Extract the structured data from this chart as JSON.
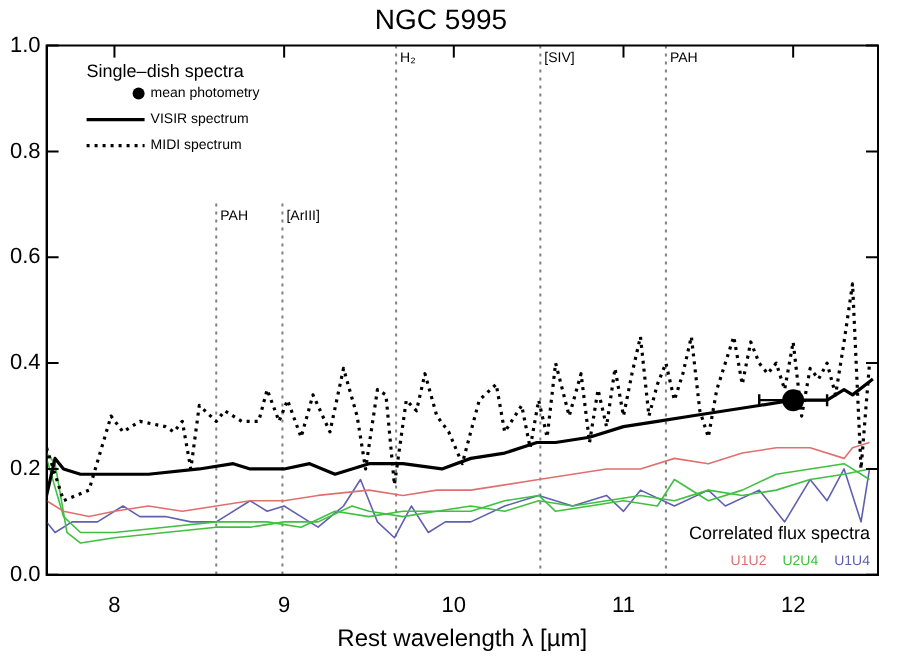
{
  "chart_data": {
    "type": "line",
    "title": "NGC 5995",
    "xlabel": "Rest wavelength λ [µm]",
    "legend": "top left",
    "legend_title": "Single–dish spectra",
    "grid": false,
    "xlim": [
      7.6,
      12.5
    ],
    "xticks": [
      8,
      9,
      10,
      11,
      12
    ],
    "ylim": [
      0,
      1.0
    ],
    "yticks": [
      {
        "value": 0,
        "label": "0.0"
      },
      0.2,
      0.4,
      0.6,
      0.8,
      {
        "value": 1,
        "label": "1.0"
      }
    ],
    "series": [
      {
        "name": "mean photometry",
        "type": "scatter",
        "color": "#000000",
        "marker": "circle",
        "x": [
          12.0
        ],
        "values": [
          0.33
        ],
        "xerrors": [
          [
            11.8,
            12.2
          ]
        ]
      },
      {
        "name": "VISIR spectrum",
        "color": "#000000",
        "line_style": "solid",
        "x": [
          7.6,
          7.65,
          7.7,
          7.8,
          8.0,
          8.2,
          8.5,
          8.7,
          8.8,
          9.0,
          9.15,
          9.3,
          9.5,
          9.7,
          9.93,
          10.1,
          10.3,
          10.49,
          10.6,
          10.8,
          11.0,
          11.2,
          11.4,
          11.6,
          11.8,
          12.0,
          12.2,
          12.3,
          12.35,
          12.47
        ],
        "values": [
          0.15,
          0.22,
          0.2,
          0.19,
          0.19,
          0.19,
          0.2,
          0.21,
          0.2,
          0.2,
          0.21,
          0.19,
          0.21,
          0.21,
          0.2,
          0.22,
          0.23,
          0.25,
          0.25,
          0.26,
          0.28,
          0.29,
          0.3,
          0.31,
          0.32,
          0.33,
          0.33,
          0.35,
          0.34,
          0.37
        ]
      },
      {
        "name": "MIDI spectrum",
        "color": "#000000",
        "line_style": "dotted",
        "x": [
          7.6,
          7.7,
          7.85,
          7.98,
          8.05,
          8.15,
          8.3,
          8.35,
          8.4,
          8.45,
          8.5,
          8.6,
          8.65,
          8.75,
          8.85,
          8.9,
          8.97,
          9.02,
          9.1,
          9.17,
          9.27,
          9.35,
          9.43,
          9.48,
          9.55,
          9.6,
          9.65,
          9.72,
          9.78,
          9.83,
          9.9,
          9.97,
          10.05,
          10.15,
          10.25,
          10.3,
          10.4,
          10.45,
          10.5,
          10.55,
          10.6,
          10.68,
          10.75,
          10.8,
          10.85,
          10.9,
          10.95,
          11.0,
          11.05,
          11.1,
          11.15,
          11.2,
          11.25,
          11.3,
          11.35,
          11.4,
          11.45,
          11.5,
          11.55,
          11.6,
          11.65,
          11.7,
          11.75,
          11.8,
          11.85,
          11.9,
          11.95,
          12.0,
          12.05,
          12.1,
          12.15,
          12.2,
          12.25,
          12.3,
          12.35,
          12.4,
          12.45
        ],
        "values": [
          0.24,
          0.14,
          0.16,
          0.3,
          0.27,
          0.29,
          0.28,
          0.27,
          0.29,
          0.2,
          0.32,
          0.29,
          0.31,
          0.29,
          0.29,
          0.35,
          0.29,
          0.33,
          0.26,
          0.34,
          0.27,
          0.39,
          0.3,
          0.2,
          0.35,
          0.34,
          0.17,
          0.33,
          0.31,
          0.38,
          0.3,
          0.27,
          0.21,
          0.33,
          0.36,
          0.27,
          0.32,
          0.24,
          0.33,
          0.26,
          0.4,
          0.3,
          0.38,
          0.25,
          0.35,
          0.28,
          0.39,
          0.3,
          0.38,
          0.45,
          0.3,
          0.36,
          0.4,
          0.33,
          0.38,
          0.45,
          0.31,
          0.26,
          0.35,
          0.4,
          0.45,
          0.36,
          0.44,
          0.4,
          0.38,
          0.4,
          0.35,
          0.44,
          0.3,
          0.39,
          0.37,
          0.4,
          0.34,
          0.44,
          0.55,
          0.2,
          0.4
        ]
      },
      {
        "name": "U1U2",
        "color": "#e07070",
        "x": [
          7.6,
          7.7,
          7.85,
          8.0,
          8.2,
          8.4,
          8.6,
          8.8,
          9.0,
          9.2,
          9.5,
          9.7,
          9.9,
          10.1,
          10.3,
          10.5,
          10.7,
          10.9,
          11.1,
          11.3,
          11.5,
          11.7,
          11.9,
          12.1,
          12.3,
          12.35,
          12.45
        ],
        "values": [
          0.14,
          0.12,
          0.11,
          0.12,
          0.13,
          0.12,
          0.13,
          0.14,
          0.14,
          0.15,
          0.16,
          0.15,
          0.16,
          0.16,
          0.17,
          0.18,
          0.19,
          0.2,
          0.2,
          0.22,
          0.21,
          0.23,
          0.24,
          0.24,
          0.22,
          0.24,
          0.25
        ]
      },
      {
        "name": "U2U4",
        "color": "#40c040",
        "x": [
          7.6,
          7.65,
          7.72,
          7.8,
          8.0,
          8.3,
          8.6,
          8.8,
          9.0,
          9.2,
          9.4,
          9.5,
          9.7,
          9.9,
          10.1,
          10.3,
          10.5,
          10.6,
          10.8,
          11.0,
          11.2,
          11.3,
          11.5,
          11.7,
          11.9,
          12.1,
          12.3,
          12.45
        ],
        "values": [
          0.23,
          0.21,
          0.08,
          0.06,
          0.07,
          0.08,
          0.09,
          0.09,
          0.1,
          0.1,
          0.13,
          0.12,
          0.11,
          0.12,
          0.12,
          0.14,
          0.15,
          0.12,
          0.13,
          0.14,
          0.13,
          0.18,
          0.14,
          0.16,
          0.19,
          0.2,
          0.21,
          0.18
        ]
      },
      {
        "color": "#40c040",
        "x": [
          7.6,
          7.7,
          7.8,
          8.0,
          8.3,
          8.6,
          8.9,
          9.1,
          9.3,
          9.5,
          9.7,
          9.9,
          10.1,
          10.3,
          10.5,
          10.7,
          10.9,
          11.1,
          11.3,
          11.5,
          11.7,
          11.9,
          12.1,
          12.3,
          12.45
        ],
        "values": [
          0.22,
          0.11,
          0.08,
          0.08,
          0.09,
          0.1,
          0.1,
          0.09,
          0.12,
          0.11,
          0.12,
          0.12,
          0.13,
          0.12,
          0.14,
          0.13,
          0.14,
          0.15,
          0.14,
          0.16,
          0.15,
          0.16,
          0.18,
          0.19,
          0.2
        ]
      },
      {
        "name": "U1U4",
        "color": "#6060b0",
        "x": [
          7.6,
          7.65,
          7.75,
          7.9,
          8.05,
          8.15,
          8.3,
          8.45,
          8.6,
          8.8,
          8.9,
          9.0,
          9.1,
          9.2,
          9.35,
          9.45,
          9.55,
          9.65,
          9.75,
          9.85,
          9.95,
          10.1,
          10.3,
          10.5,
          10.7,
          10.9,
          11.0,
          11.1,
          11.3,
          11.5,
          11.6,
          11.8,
          11.95,
          12.1,
          12.2,
          12.3,
          12.4,
          12.45
        ],
        "values": [
          0.1,
          0.08,
          0.1,
          0.1,
          0.13,
          0.11,
          0.11,
          0.1,
          0.1,
          0.14,
          0.12,
          0.13,
          0.11,
          0.09,
          0.13,
          0.18,
          0.1,
          0.07,
          0.13,
          0.08,
          0.1,
          0.1,
          0.13,
          0.15,
          0.13,
          0.15,
          0.12,
          0.16,
          0.13,
          0.16,
          0.13,
          0.16,
          0.1,
          0.18,
          0.14,
          0.2,
          0.1,
          0.2
        ]
      }
    ],
    "ref_lines": [
      {
        "axis": "x",
        "value": 8.6,
        "label": "PAH",
        "line_style": "dotted",
        "color": "#808080"
      },
      {
        "axis": "x",
        "value": 8.99,
        "label": "[ArIII]",
        "line_style": "dotted",
        "color": "#808080"
      },
      {
        "axis": "x",
        "value": 9.66,
        "label": "H₂",
        "line_style": "dotted",
        "color": "#808080"
      },
      {
        "axis": "x",
        "value": 10.51,
        "label": "[SIV]",
        "line_style": "dotted",
        "color": "#808080"
      },
      {
        "axis": "x",
        "value": 11.25,
        "label": "PAH",
        "line_style": "dotted",
        "color": "#808080"
      }
    ],
    "annotations": [
      "Correlated flux spectra"
    ]
  }
}
